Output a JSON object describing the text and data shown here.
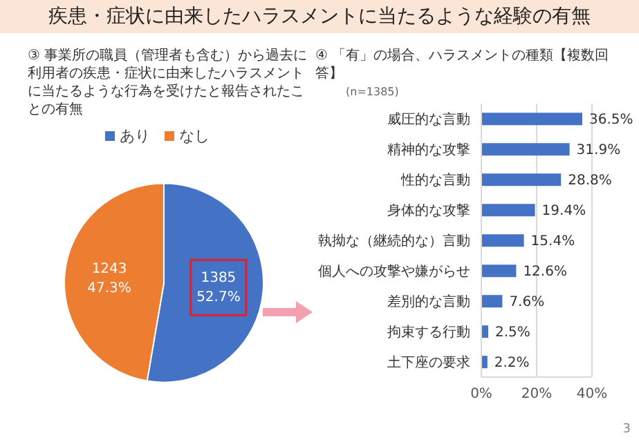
{
  "chart_data": [
    {
      "type": "pie",
      "title": "③ 事業所の職員（管理者も含む）から過去に利用者の疾患・症状に由来したハラスメントに当たるような行為を受けたと報告されたことの有無",
      "annotations": [
        "疾患・症状に由来したハラスメントに当たるような経験の有無",
        "3"
      ],
      "categories": [
        "あり",
        "なし"
      ],
      "values": [
        1385,
        1243
      ],
      "colors": [
        "#4472c4",
        "#ed7d31"
      ],
      "value_labels": [
        "1385\n52.7%",
        "1243\n47.3%"
      ],
      "legend": "top"
    },
    {
      "type": "bar",
      "orientation": "horizontal",
      "title": "④ 「有」の場合、ハラスメントの種類【複数回答】",
      "subtitle": "(n=1385)",
      "categories": [
        "威圧的な言動",
        "精神的な攻撃",
        "性的な言動",
        "身体的な攻撃",
        "執拗な（継続的な）言動",
        "個人への攻撃や嫌がらせ",
        "差別的な言動",
        "拘束する行動",
        "土下座の要求"
      ],
      "values": [
        36.5,
        31.9,
        28.8,
        19.4,
        15.4,
        12.6,
        7.6,
        2.5,
        2.2
      ],
      "color": "#4472c4",
      "value_labels": [
        "36.5%",
        "31.9%",
        "28.8%",
        "19.4%",
        "15.4%",
        "12.6%",
        "7.6%",
        "2.5%",
        "2.2%"
      ],
      "xlim": [
        0,
        40
      ],
      "xticks": [
        {
          "value": 0,
          "label": "0%"
        },
        {
          "value": 20,
          "label": "20%"
        },
        {
          "value": 40,
          "label": "40%"
        }
      ],
      "grid": "x"
    }
  ]
}
